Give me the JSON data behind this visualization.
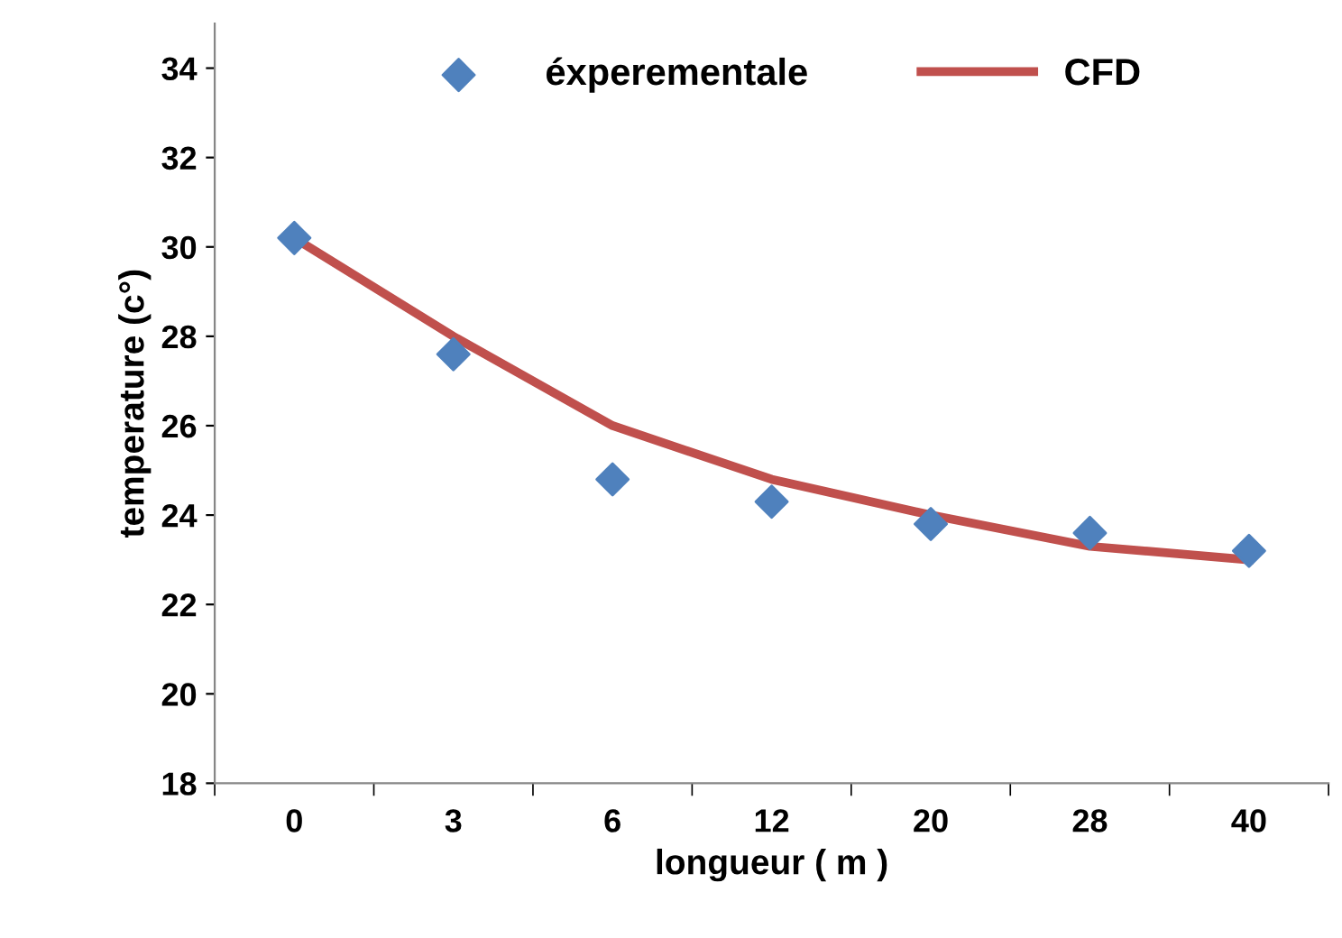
{
  "chart_data": {
    "type": "line",
    "xlabel": "longueur ( m )",
    "ylabel": "temperature (c°)",
    "categories": [
      "0",
      "3",
      "6",
      "12",
      "20",
      "28",
      "40"
    ],
    "series": [
      {
        "name": "éxperementale",
        "type": "scatter",
        "color": "#4f81bd",
        "marker": "diamond",
        "values": [
          30.2,
          27.6,
          24.8,
          24.3,
          23.8,
          23.6,
          23.2
        ]
      },
      {
        "name": "CFD",
        "color": "#c0504d",
        "marker": "none",
        "values": [
          30.2,
          28.0,
          26.0,
          24.8,
          24.0,
          23.3,
          23.0
        ]
      }
    ],
    "ylim": [
      18,
      35
    ],
    "yticks": [
      18,
      20,
      22,
      24,
      26,
      28,
      30,
      32,
      34
    ],
    "grid": false,
    "legend": "top"
  }
}
